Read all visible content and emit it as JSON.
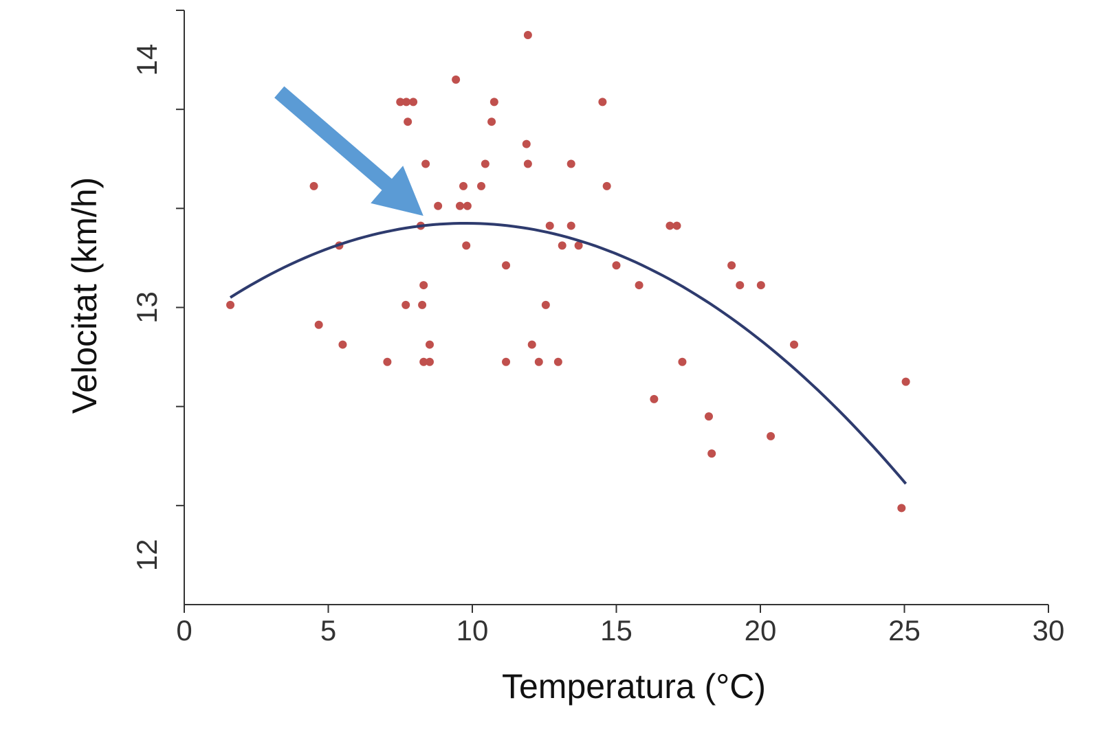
{
  "chart_data": {
    "type": "scatter",
    "title": "",
    "xlabel": "Temperatura (°C)",
    "ylabel": "Velocitat (km/h)",
    "xlim": [
      0,
      30
    ],
    "ylim": [
      11.8,
      14.2
    ],
    "x_tick_labels": [
      "0",
      "5",
      "10",
      "15",
      "20",
      "25",
      "30"
    ],
    "x_ticks": [
      0,
      5,
      10,
      15,
      20,
      25,
      30
    ],
    "y_tick_marks": [
      12.2,
      12.6,
      13.0,
      13.4,
      13.8,
      14.2
    ],
    "y_tick_labels": [
      "12",
      "13",
      "14"
    ],
    "y_label_values": [
      12,
      13,
      14
    ],
    "grid": false,
    "legend": "none",
    "colors": {
      "points": "#c0504d",
      "fit_curve": "#2e3b6e",
      "arrow": "#5b9bd5",
      "axis": "#333333"
    },
    "points": [
      [
        1.6,
        13.01
      ],
      [
        4.5,
        13.49
      ],
      [
        4.67,
        12.93
      ],
      [
        5.38,
        13.25
      ],
      [
        5.5,
        12.85
      ],
      [
        7.05,
        12.78
      ],
      [
        7.5,
        13.83
      ],
      [
        7.71,
        13.83
      ],
      [
        7.76,
        13.75
      ],
      [
        7.95,
        13.83
      ],
      [
        7.69,
        13.01
      ],
      [
        8.26,
        13.01
      ],
      [
        8.31,
        13.09
      ],
      [
        8.21,
        13.33
      ],
      [
        8.38,
        13.58
      ],
      [
        8.31,
        12.78
      ],
      [
        8.52,
        12.78
      ],
      [
        8.52,
        12.85
      ],
      [
        8.81,
        13.41
      ],
      [
        9.43,
        13.92
      ],
      [
        9.57,
        13.41
      ],
      [
        9.83,
        13.41
      ],
      [
        9.69,
        13.49
      ],
      [
        9.79,
        13.25
      ],
      [
        10.31,
        13.49
      ],
      [
        10.45,
        13.58
      ],
      [
        10.67,
        13.75
      ],
      [
        10.76,
        13.83
      ],
      [
        11.17,
        13.17
      ],
      [
        11.17,
        12.78
      ],
      [
        11.88,
        13.66
      ],
      [
        11.93,
        13.58
      ],
      [
        11.93,
        14.1
      ],
      [
        12.07,
        12.85
      ],
      [
        12.31,
        12.78
      ],
      [
        12.55,
        13.01
      ],
      [
        12.69,
        13.33
      ],
      [
        12.98,
        12.78
      ],
      [
        13.12,
        13.25
      ],
      [
        13.43,
        13.58
      ],
      [
        13.43,
        13.33
      ],
      [
        13.69,
        13.25
      ],
      [
        14.52,
        13.83
      ],
      [
        14.67,
        13.49
      ],
      [
        15.0,
        13.17
      ],
      [
        15.79,
        13.09
      ],
      [
        16.31,
        12.63
      ],
      [
        16.86,
        13.33
      ],
      [
        17.1,
        13.33
      ],
      [
        17.29,
        12.78
      ],
      [
        18.21,
        12.56
      ],
      [
        18.31,
        12.41
      ],
      [
        19.0,
        13.17
      ],
      [
        19.29,
        13.09
      ],
      [
        20.02,
        13.09
      ],
      [
        20.36,
        12.48
      ],
      [
        21.17,
        12.85
      ],
      [
        24.9,
        12.19
      ],
      [
        25.05,
        12.7
      ]
    ],
    "fit_curve": {
      "type": "quadratic",
      "vertex_x": 9.76,
      "vertex_y": 13.34,
      "a": -0.0045,
      "x_range": [
        1.6,
        25.05
      ]
    },
    "annotations": [
      {
        "type": "arrow",
        "from": [
          3.3,
          13.87
        ],
        "to": [
          8.3,
          13.37
        ]
      }
    ]
  }
}
